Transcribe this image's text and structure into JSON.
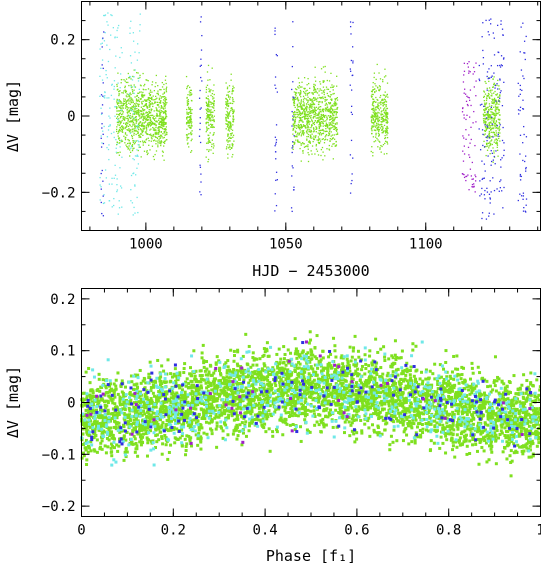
{
  "chart_data": [
    {
      "type": "scatter",
      "name": "light-curve",
      "xlabel": "HJD − 2453000",
      "ylabel": "ΔV [mag]",
      "xlim": [
        977,
        1141
      ],
      "ylim": [
        0.3,
        -0.3
      ],
      "x_ticks": [
        1000,
        1050,
        1100
      ],
      "x_tick_labels": [
        "1000",
        "1050",
        "1100"
      ],
      "y_ticks": [
        -0.2,
        0,
        0.2
      ],
      "y_tick_labels": [
        "−0.2",
        "0",
        "0.2"
      ],
      "grid": false,
      "series": [
        {
          "color": "#7fe01f",
          "segments": [
            [
              989.5,
              1007.5
            ],
            [
              1014.5,
              1016.5
            ],
            [
              1021.5,
              1024.5
            ],
            [
              1028.5,
              1031.5
            ],
            [
              1052.5,
              1068.5
            ],
            [
              1080.5,
              1086.5
            ],
            [
              1120.5,
              1126.5
            ]
          ],
          "y_range": [
            -0.22,
            0.26
          ]
        },
        {
          "color": "#6fe8e8",
          "segments": [
            [
              983.5,
              991.5
            ],
            [
              994,
              998
            ]
          ],
          "y_range": [
            -0.26,
            0.27
          ]
        },
        {
          "color": "#2f2fe0",
          "segments": [
            [
              984,
              985
            ],
            [
              1019,
              1020
            ],
            [
              1046,
              1047
            ],
            [
              1052,
              1053
            ],
            [
              1073,
              1074
            ],
            [
              1119,
              1128
            ],
            [
              1133,
              1136
            ]
          ],
          "y_range": [
            -0.27,
            0.26
          ]
        },
        {
          "color": "#a020c8",
          "segments": [
            [
              1113,
              1118
            ]
          ],
          "y_range": [
            -0.2,
            0.15
          ]
        }
      ]
    },
    {
      "type": "scatter",
      "name": "phase-diagram",
      "xlabel": "Phase [f₁]",
      "ylabel": "ΔV [mag]",
      "xlim": [
        0,
        1
      ],
      "ylim": [
        0.22,
        -0.22
      ],
      "x_ticks": [
        0,
        0.2,
        0.4,
        0.6,
        0.8,
        1
      ],
      "x_tick_labels": [
        "0",
        "0.2",
        "0.4",
        "0.6",
        "0.8",
        "1"
      ],
      "y_ticks": [
        -0.2,
        -0.1,
        0,
        0.1,
        0.2
      ],
      "y_tick_labels": [
        "−0.2",
        "−0.1",
        "0",
        "0.1",
        "0.2"
      ],
      "grid": false,
      "series": [
        {
          "color": "#7fe01f",
          "amplitude": 0.03,
          "spread": 0.19
        },
        {
          "color": "#6fe8e8",
          "amplitude": 0.03,
          "spread": 0.2
        },
        {
          "color": "#2f2fe0",
          "amplitude": 0.03,
          "spread": 0.2
        },
        {
          "color": "#a020c8",
          "amplitude": 0.03,
          "spread": 0.15
        }
      ]
    }
  ]
}
